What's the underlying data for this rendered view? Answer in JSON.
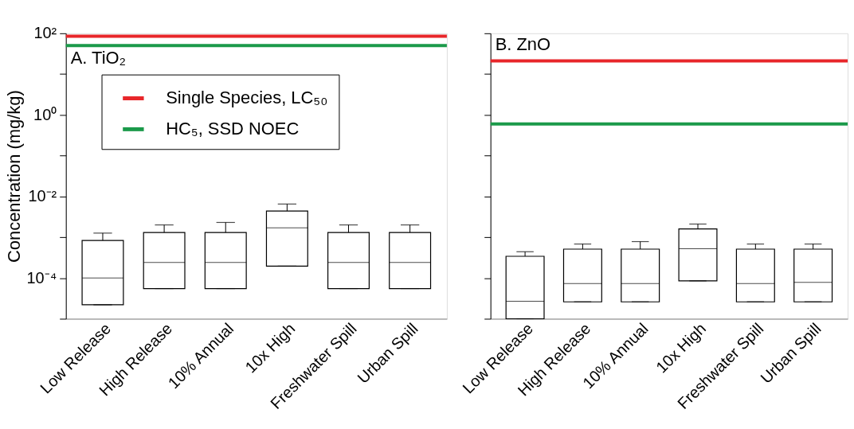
{
  "chart_data": [
    {
      "type": "box",
      "title": "A. TiO₂",
      "ylabel": "Concentration (mg/kg)",
      "log": true,
      "legend": "top left",
      "grid": false,
      "categories": [
        "Low Release",
        "High Release",
        "10% Annual",
        "10x High",
        "Freshwater Spill",
        "Urban Spill"
      ],
      "boxes": [
        {
          "low": 2.2e-05,
          "q1": 2.2e-05,
          "median": 0.0001,
          "q3": 0.00083,
          "high": 0.00126
        },
        {
          "low": 5.5e-05,
          "q1": 5.5e-05,
          "median": 0.00024,
          "q3": 0.0013,
          "high": 0.002
        },
        {
          "low": 5.5e-05,
          "q1": 5.5e-05,
          "median": 0.00024,
          "q3": 0.0013,
          "high": 0.0023
        },
        {
          "low": 0.000195,
          "q1": 0.000195,
          "median": 0.0017,
          "q3": 0.0044,
          "high": 0.0065
        },
        {
          "low": 5.5e-05,
          "q1": 5.5e-05,
          "median": 0.00024,
          "q3": 0.0013,
          "high": 0.002
        },
        {
          "low": 5.5e-05,
          "q1": 5.5e-05,
          "median": 0.00024,
          "q3": 0.0013,
          "high": 0.002
        }
      ],
      "ref_lines": [
        {
          "axis": "y",
          "value": 85,
          "label": "Single Species, LC₅₀",
          "color": "#e8262a"
        },
        {
          "axis": "y",
          "value": 50,
          "label": "HC₅, SSD NOEC",
          "color": "#1b9a4a"
        }
      ],
      "ylim": [
        1e-05,
        100
      ],
      "yticks": [
        {
          "value": 1e-05,
          "label": null
        },
        {
          "value": 0.0001,
          "label": "10⁻⁴"
        },
        {
          "value": 0.001,
          "label": null
        },
        {
          "value": 0.01,
          "label": "10⁻²"
        },
        {
          "value": 0.1,
          "label": null
        },
        {
          "value": 1,
          "label": "10⁰"
        },
        {
          "value": 10,
          "label": null
        },
        {
          "value": 100,
          "label": "10²"
        }
      ]
    },
    {
      "type": "box",
      "title": "B. ZnO",
      "log": true,
      "grid": false,
      "tick_labels": "x",
      "categories": [
        "Low Release",
        "High Release",
        "10% Annual",
        "10x High",
        "Freshwater Spill",
        "Urban Spill"
      ],
      "boxes": [
        {
          "low": 1e-05,
          "q1": 1e-05,
          "median": 2.7e-05,
          "q3": 0.00034,
          "high": 0.00044
        },
        {
          "low": 2.6e-05,
          "q1": 2.6e-05,
          "median": 7.3e-05,
          "q3": 0.00051,
          "high": 0.00068
        },
        {
          "low": 2.6e-05,
          "q1": 2.6e-05,
          "median": 7.3e-05,
          "q3": 0.00051,
          "high": 0.00078
        },
        {
          "low": 8.5e-05,
          "q1": 8.5e-05,
          "median": 0.00052,
          "q3": 0.0016,
          "high": 0.0021
        },
        {
          "low": 2.6e-05,
          "q1": 2.6e-05,
          "median": 7.3e-05,
          "q3": 0.00051,
          "high": 0.00068
        },
        {
          "low": 2.6e-05,
          "q1": 2.6e-05,
          "median": 7.8e-05,
          "q3": 0.00051,
          "high": 0.00068
        }
      ],
      "ref_lines": [
        {
          "axis": "y",
          "value": 21,
          "color": "#e8262a"
        },
        {
          "axis": "y",
          "value": 0.6,
          "color": "#1b9a4a"
        }
      ],
      "ylim": [
        1e-05,
        100
      ],
      "yticks": [
        {
          "value": 1e-05,
          "label": null
        },
        {
          "value": 0.0001,
          "label": null
        },
        {
          "value": 0.001,
          "label": null
        },
        {
          "value": 0.01,
          "label": null
        },
        {
          "value": 0.1,
          "label": null
        },
        {
          "value": 1,
          "label": null
        },
        {
          "value": 10,
          "label": null
        },
        {
          "value": 100,
          "label": null
        }
      ]
    }
  ]
}
